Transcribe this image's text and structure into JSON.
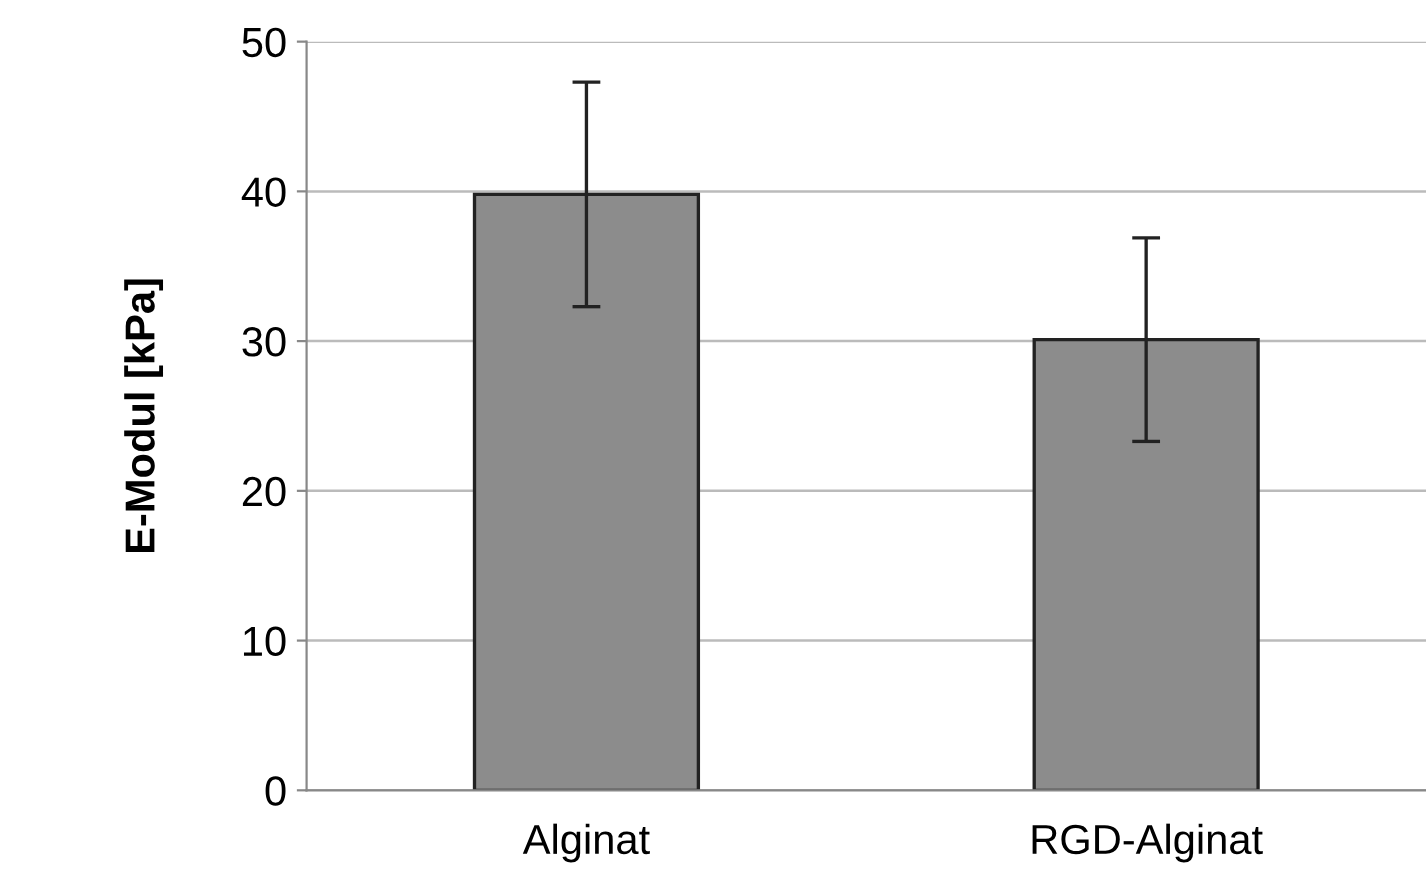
{
  "chart_data": {
    "type": "bar",
    "ylabel": "E-Modul [kPa]",
    "categories": [
      "Alginat",
      "RGD-Alginat"
    ],
    "values": [
      39.8,
      30.1
    ],
    "errors": [
      7.5,
      6.8
    ],
    "color": "#8c8c8c",
    "ylim": [
      0,
      50
    ],
    "yticks": [
      0,
      10,
      20,
      30,
      40,
      50
    ],
    "grid": "y"
  }
}
